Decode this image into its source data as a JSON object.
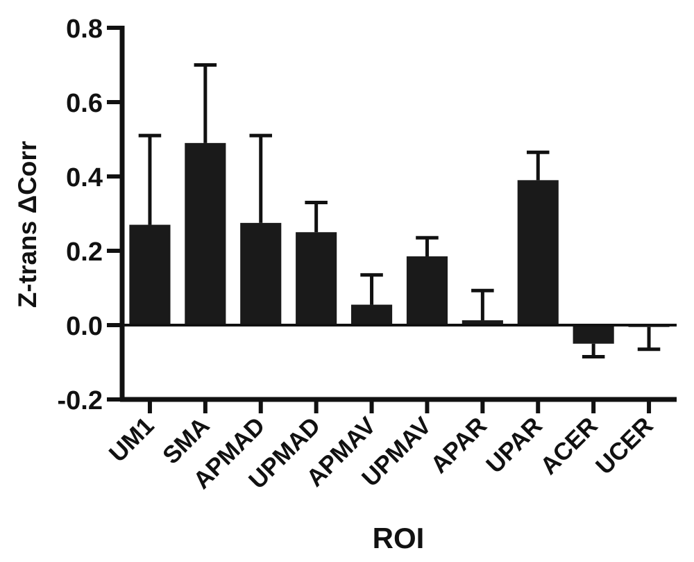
{
  "chart_data": {
    "type": "bar",
    "title": "",
    "xlabel": "ROI",
    "ylabel": "Z-trans ΔCorr",
    "ylim": [
      -0.2,
      0.8
    ],
    "yticks": [
      -0.2,
      0.0,
      0.2,
      0.4,
      0.6,
      0.8
    ],
    "ytick_labels": [
      "-0.2",
      "0.0",
      "0.2",
      "0.4",
      "0.6",
      "0.8"
    ],
    "categories": [
      "UM1",
      "SMA",
      "APMAD",
      "UPMAD",
      "APMAV",
      "UPMAV",
      "APAR",
      "UPAR",
      "ACER",
      "UCER"
    ],
    "values": [
      0.27,
      0.49,
      0.275,
      0.25,
      0.055,
      0.185,
      0.013,
      0.39,
      -0.05,
      -0.005
    ],
    "error_bars": [
      0.24,
      0.21,
      0.235,
      0.08,
      0.08,
      0.05,
      0.08,
      0.075,
      0.035,
      0.06
    ],
    "error_direction": "away-from-zero",
    "bar_color": "#1a1a1a",
    "grid": false,
    "legend": "none"
  }
}
